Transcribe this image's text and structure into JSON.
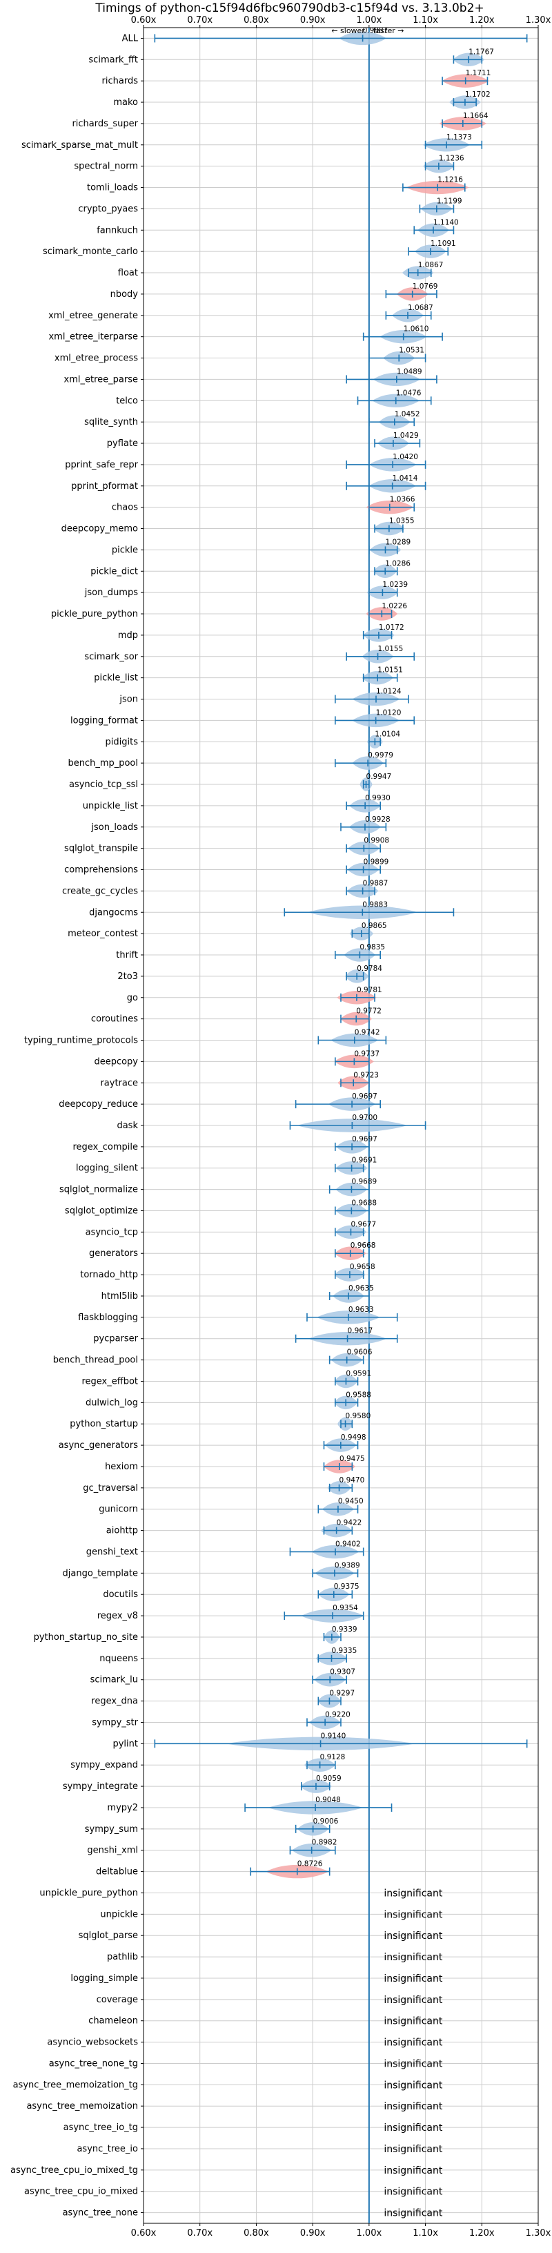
{
  "chart_data": {
    "type": "violin",
    "title": "Timings of python-c15f94d6fbc960790db3-c15f94d vs. 3.13.0b2+",
    "slower_label": "← slower",
    "faster_label": "faster →",
    "xlim": [
      0.6,
      1.3
    ],
    "x_ticks": [
      "0.60x",
      "0.70x",
      "0.80x",
      "0.90x",
      "1.00x",
      "1.10x",
      "1.20x",
      "1.30x"
    ],
    "x_tick_values": [
      0.6,
      0.7,
      0.8,
      0.9,
      1.0,
      1.1,
      1.2,
      1.3
    ],
    "grid": true,
    "reference_line": 1.0,
    "colors": {
      "normal": "#a9c8e4",
      "significant_slower": "#f4a6a6",
      "line": "#1f77b4",
      "grid": "#cccccc"
    },
    "insignificant_label": "insignificant",
    "rows": [
      {
        "name": "ALL",
        "value": 0.9887,
        "lo": 0.62,
        "hi": 1.28,
        "spread": 0.03,
        "color": "blue"
      },
      {
        "name": "scimark_fft",
        "value": 1.1767,
        "lo": 1.15,
        "hi": 1.2,
        "spread": 0.02,
        "color": "blue"
      },
      {
        "name": "richards",
        "value": 1.1711,
        "lo": 1.13,
        "hi": 1.21,
        "spread": 0.03,
        "color": "red"
      },
      {
        "name": "mako",
        "value": 1.1702,
        "lo": 1.15,
        "hi": 1.19,
        "spread": 0.02,
        "color": "blue"
      },
      {
        "name": "richards_super",
        "value": 1.1664,
        "lo": 1.13,
        "hi": 1.2,
        "spread": 0.03,
        "color": "red"
      },
      {
        "name": "scimark_sparse_mat_mult",
        "value": 1.1373,
        "lo": 1.1,
        "hi": 1.2,
        "spread": 0.03,
        "color": "blue"
      },
      {
        "name": "spectral_norm",
        "value": 1.1236,
        "lo": 1.1,
        "hi": 1.15,
        "spread": 0.02,
        "color": "blue"
      },
      {
        "name": "tomli_loads",
        "value": 1.1216,
        "lo": 1.06,
        "hi": 1.17,
        "spread": 0.04,
        "color": "red"
      },
      {
        "name": "crypto_pyaes",
        "value": 1.1199,
        "lo": 1.09,
        "hi": 1.15,
        "spread": 0.02,
        "color": "blue"
      },
      {
        "name": "fannkuch",
        "value": 1.114,
        "lo": 1.08,
        "hi": 1.15,
        "spread": 0.02,
        "color": "blue"
      },
      {
        "name": "scimark_monte_carlo",
        "value": 1.1091,
        "lo": 1.07,
        "hi": 1.14,
        "spread": 0.02,
        "color": "blue"
      },
      {
        "name": "float",
        "value": 1.0867,
        "lo": 1.07,
        "hi": 1.11,
        "spread": 0.02,
        "color": "blue"
      },
      {
        "name": "nbody",
        "value": 1.0769,
        "lo": 1.03,
        "hi": 1.12,
        "spread": 0.02,
        "color": "red"
      },
      {
        "name": "xml_etree_generate",
        "value": 1.0687,
        "lo": 1.03,
        "hi": 1.11,
        "spread": 0.02,
        "color": "blue"
      },
      {
        "name": "xml_etree_iterparse",
        "value": 1.061,
        "lo": 0.99,
        "hi": 1.13,
        "spread": 0.03,
        "color": "blue"
      },
      {
        "name": "xml_etree_process",
        "value": 1.0531,
        "lo": 1.0,
        "hi": 1.1,
        "spread": 0.02,
        "color": "blue"
      },
      {
        "name": "xml_etree_parse",
        "value": 1.0489,
        "lo": 0.96,
        "hi": 1.12,
        "spread": 0.03,
        "color": "blue"
      },
      {
        "name": "telco",
        "value": 1.0476,
        "lo": 0.98,
        "hi": 1.11,
        "spread": 0.03,
        "color": "blue"
      },
      {
        "name": "sqlite_synth",
        "value": 1.0452,
        "lo": 1.0,
        "hi": 1.08,
        "spread": 0.02,
        "color": "blue"
      },
      {
        "name": "pyflate",
        "value": 1.0429,
        "lo": 1.01,
        "hi": 1.09,
        "spread": 0.02,
        "color": "blue"
      },
      {
        "name": "pprint_safe_repr",
        "value": 1.042,
        "lo": 0.96,
        "hi": 1.1,
        "spread": 0.03,
        "color": "blue"
      },
      {
        "name": "pprint_pformat",
        "value": 1.0414,
        "lo": 0.96,
        "hi": 1.1,
        "spread": 0.03,
        "color": "blue"
      },
      {
        "name": "chaos",
        "value": 1.0366,
        "lo": 1.0,
        "hi": 1.08,
        "spread": 0.03,
        "color": "red"
      },
      {
        "name": "deepcopy_memo",
        "value": 1.0355,
        "lo": 1.01,
        "hi": 1.06,
        "spread": 0.02,
        "color": "blue"
      },
      {
        "name": "pickle",
        "value": 1.0289,
        "lo": 1.0,
        "hi": 1.05,
        "spread": 0.02,
        "color": "blue"
      },
      {
        "name": "pickle_dict",
        "value": 1.0286,
        "lo": 1.01,
        "hi": 1.05,
        "spread": 0.015,
        "color": "blue"
      },
      {
        "name": "json_dumps",
        "value": 1.0239,
        "lo": 1.0,
        "hi": 1.05,
        "spread": 0.02,
        "color": "blue"
      },
      {
        "name": "pickle_pure_python",
        "value": 1.0226,
        "lo": 1.0,
        "hi": 1.04,
        "spread": 0.02,
        "color": "red"
      },
      {
        "name": "mdp",
        "value": 1.0172,
        "lo": 0.99,
        "hi": 1.04,
        "spread": 0.02,
        "color": "blue"
      },
      {
        "name": "scimark_sor",
        "value": 1.0155,
        "lo": 0.96,
        "hi": 1.08,
        "spread": 0.02,
        "color": "blue"
      },
      {
        "name": "pickle_list",
        "value": 1.0151,
        "lo": 0.99,
        "hi": 1.05,
        "spread": 0.02,
        "color": "blue"
      },
      {
        "name": "json",
        "value": 1.0124,
        "lo": 0.94,
        "hi": 1.07,
        "spread": 0.03,
        "color": "blue"
      },
      {
        "name": "logging_format",
        "value": 1.012,
        "lo": 0.94,
        "hi": 1.08,
        "spread": 0.03,
        "color": "blue"
      },
      {
        "name": "pidigits",
        "value": 1.0104,
        "lo": 1.0,
        "hi": 1.02,
        "spread": 0.01,
        "color": "blue"
      },
      {
        "name": "bench_mp_pool",
        "value": 0.9979,
        "lo": 0.94,
        "hi": 1.03,
        "spread": 0.02,
        "color": "blue"
      },
      {
        "name": "asyncio_tcp_ssl",
        "value": 0.9947,
        "lo": 0.99,
        "hi": 1.0,
        "spread": 0.008,
        "color": "blue"
      },
      {
        "name": "unpickle_list",
        "value": 0.993,
        "lo": 0.96,
        "hi": 1.02,
        "spread": 0.02,
        "color": "blue"
      },
      {
        "name": "json_loads",
        "value": 0.9928,
        "lo": 0.95,
        "hi": 1.03,
        "spread": 0.02,
        "color": "blue"
      },
      {
        "name": "sqlglot_transpile",
        "value": 0.9908,
        "lo": 0.96,
        "hi": 1.02,
        "spread": 0.02,
        "color": "blue"
      },
      {
        "name": "comprehensions",
        "value": 0.9899,
        "lo": 0.96,
        "hi": 1.02,
        "spread": 0.02,
        "color": "blue"
      },
      {
        "name": "create_gc_cycles",
        "value": 0.9887,
        "lo": 0.96,
        "hi": 1.01,
        "spread": 0.02,
        "color": "blue"
      },
      {
        "name": "djangocms",
        "value": 0.9883,
        "lo": 0.85,
        "hi": 1.15,
        "spread": 0.07,
        "color": "blue"
      },
      {
        "name": "meteor_contest",
        "value": 0.9865,
        "lo": 0.97,
        "hi": 1.0,
        "spread": 0.015,
        "color": "blue"
      },
      {
        "name": "thrift",
        "value": 0.9835,
        "lo": 0.94,
        "hi": 1.02,
        "spread": 0.02,
        "color": "blue"
      },
      {
        "name": "2to3",
        "value": 0.9784,
        "lo": 0.96,
        "hi": 0.99,
        "spread": 0.015,
        "color": "blue"
      },
      {
        "name": "go",
        "value": 0.9781,
        "lo": 0.95,
        "hi": 1.01,
        "spread": 0.025,
        "color": "red"
      },
      {
        "name": "coroutines",
        "value": 0.9772,
        "lo": 0.95,
        "hi": 1.0,
        "spread": 0.02,
        "color": "red"
      },
      {
        "name": "typing_runtime_protocols",
        "value": 0.9742,
        "lo": 0.91,
        "hi": 1.03,
        "spread": 0.03,
        "color": "blue"
      },
      {
        "name": "deepcopy",
        "value": 0.9737,
        "lo": 0.94,
        "hi": 1.0,
        "spread": 0.025,
        "color": "red"
      },
      {
        "name": "raytrace",
        "value": 0.9723,
        "lo": 0.95,
        "hi": 1.0,
        "spread": 0.02,
        "color": "red"
      },
      {
        "name": "deepcopy_reduce",
        "value": 0.9697,
        "lo": 0.87,
        "hi": 1.02,
        "spread": 0.03,
        "color": "blue"
      },
      {
        "name": "dask",
        "value": 0.97,
        "lo": 0.86,
        "hi": 1.1,
        "spread": 0.07,
        "color": "blue"
      },
      {
        "name": "regex_compile",
        "value": 0.9697,
        "lo": 0.94,
        "hi": 1.0,
        "spread": 0.02,
        "color": "blue"
      },
      {
        "name": "logging_silent",
        "value": 0.9691,
        "lo": 0.94,
        "hi": 0.99,
        "spread": 0.02,
        "color": "blue"
      },
      {
        "name": "sqlglot_normalize",
        "value": 0.9689,
        "lo": 0.93,
        "hi": 1.0,
        "spread": 0.02,
        "color": "blue"
      },
      {
        "name": "sqlglot_optimize",
        "value": 0.9688,
        "lo": 0.94,
        "hi": 1.0,
        "spread": 0.02,
        "color": "blue"
      },
      {
        "name": "asyncio_tcp",
        "value": 0.9677,
        "lo": 0.94,
        "hi": 0.99,
        "spread": 0.02,
        "color": "blue"
      },
      {
        "name": "generators",
        "value": 0.9668,
        "lo": 0.94,
        "hi": 0.99,
        "spread": 0.02,
        "color": "red"
      },
      {
        "name": "tornado_http",
        "value": 0.9658,
        "lo": 0.94,
        "hi": 0.99,
        "spread": 0.02,
        "color": "blue"
      },
      {
        "name": "html5lib",
        "value": 0.9635,
        "lo": 0.93,
        "hi": 1.0,
        "spread": 0.02,
        "color": "blue"
      },
      {
        "name": "flaskblogging",
        "value": 0.9633,
        "lo": 0.89,
        "hi": 1.05,
        "spread": 0.04,
        "color": "blue"
      },
      {
        "name": "pycparser",
        "value": 0.9617,
        "lo": 0.87,
        "hi": 1.05,
        "spread": 0.05,
        "color": "blue"
      },
      {
        "name": "bench_thread_pool",
        "value": 0.9606,
        "lo": 0.93,
        "hi": 0.99,
        "spread": 0.02,
        "color": "blue"
      },
      {
        "name": "regex_effbot",
        "value": 0.9591,
        "lo": 0.94,
        "hi": 0.98,
        "spread": 0.015,
        "color": "blue"
      },
      {
        "name": "dulwich_log",
        "value": 0.9588,
        "lo": 0.94,
        "hi": 0.98,
        "spread": 0.015,
        "color": "blue"
      },
      {
        "name": "python_startup",
        "value": 0.958,
        "lo": 0.95,
        "hi": 0.97,
        "spread": 0.01,
        "color": "blue"
      },
      {
        "name": "async_generators",
        "value": 0.9498,
        "lo": 0.92,
        "hi": 0.98,
        "spread": 0.02,
        "color": "blue"
      },
      {
        "name": "hexiom",
        "value": 0.9475,
        "lo": 0.92,
        "hi": 0.97,
        "spread": 0.02,
        "color": "red"
      },
      {
        "name": "gc_traversal",
        "value": 0.947,
        "lo": 0.93,
        "hi": 0.97,
        "spread": 0.015,
        "color": "blue"
      },
      {
        "name": "gunicorn",
        "value": 0.945,
        "lo": 0.91,
        "hi": 0.98,
        "spread": 0.02,
        "color": "blue"
      },
      {
        "name": "aiohttp",
        "value": 0.9422,
        "lo": 0.92,
        "hi": 0.97,
        "spread": 0.02,
        "color": "blue"
      },
      {
        "name": "genshi_text",
        "value": 0.9402,
        "lo": 0.86,
        "hi": 0.99,
        "spread": 0.03,
        "color": "blue"
      },
      {
        "name": "django_template",
        "value": 0.9389,
        "lo": 0.9,
        "hi": 0.98,
        "spread": 0.025,
        "color": "blue"
      },
      {
        "name": "docutils",
        "value": 0.9375,
        "lo": 0.91,
        "hi": 0.97,
        "spread": 0.02,
        "color": "blue"
      },
      {
        "name": "regex_v8",
        "value": 0.9354,
        "lo": 0.85,
        "hi": 0.99,
        "spread": 0.04,
        "color": "blue"
      },
      {
        "name": "python_startup_no_site",
        "value": 0.9339,
        "lo": 0.92,
        "hi": 0.95,
        "spread": 0.01,
        "color": "blue"
      },
      {
        "name": "nqueens",
        "value": 0.9335,
        "lo": 0.91,
        "hi": 0.96,
        "spread": 0.02,
        "color": "blue"
      },
      {
        "name": "scimark_lu",
        "value": 0.9307,
        "lo": 0.9,
        "hi": 0.96,
        "spread": 0.02,
        "color": "blue"
      },
      {
        "name": "regex_dna",
        "value": 0.9297,
        "lo": 0.91,
        "hi": 0.95,
        "spread": 0.015,
        "color": "blue"
      },
      {
        "name": "sympy_str",
        "value": 0.922,
        "lo": 0.89,
        "hi": 0.95,
        "spread": 0.02,
        "color": "blue"
      },
      {
        "name": "pylint",
        "value": 0.914,
        "lo": 0.62,
        "hi": 1.28,
        "spread": 0.12,
        "color": "blue"
      },
      {
        "name": "sympy_expand",
        "value": 0.9128,
        "lo": 0.89,
        "hi": 0.94,
        "spread": 0.02,
        "color": "blue"
      },
      {
        "name": "sympy_integrate",
        "value": 0.9059,
        "lo": 0.88,
        "hi": 0.93,
        "spread": 0.02,
        "color": "blue"
      },
      {
        "name": "mypy2",
        "value": 0.9048,
        "lo": 0.78,
        "hi": 1.04,
        "spread": 0.06,
        "color": "blue"
      },
      {
        "name": "sympy_sum",
        "value": 0.9006,
        "lo": 0.87,
        "hi": 0.93,
        "spread": 0.02,
        "color": "blue"
      },
      {
        "name": "genshi_xml",
        "value": 0.8982,
        "lo": 0.86,
        "hi": 0.94,
        "spread": 0.025,
        "color": "blue"
      },
      {
        "name": "deltablue",
        "value": 0.8726,
        "lo": 0.79,
        "hi": 0.93,
        "spread": 0.04,
        "color": "red"
      },
      {
        "name": "unpickle_pure_python",
        "insignificant": true
      },
      {
        "name": "unpickle",
        "insignificant": true
      },
      {
        "name": "sqlglot_parse",
        "insignificant": true
      },
      {
        "name": "pathlib",
        "insignificant": true
      },
      {
        "name": "logging_simple",
        "insignificant": true
      },
      {
        "name": "coverage",
        "insignificant": true
      },
      {
        "name": "chameleon",
        "insignificant": true
      },
      {
        "name": "asyncio_websockets",
        "insignificant": true
      },
      {
        "name": "async_tree_none_tg",
        "insignificant": true
      },
      {
        "name": "async_tree_memoization_tg",
        "insignificant": true
      },
      {
        "name": "async_tree_memoization",
        "insignificant": true
      },
      {
        "name": "async_tree_io_tg",
        "insignificant": true
      },
      {
        "name": "async_tree_io",
        "insignificant": true
      },
      {
        "name": "async_tree_cpu_io_mixed_tg",
        "insignificant": true
      },
      {
        "name": "async_tree_cpu_io_mixed",
        "insignificant": true
      },
      {
        "name": "async_tree_none",
        "insignificant": true
      }
    ]
  }
}
